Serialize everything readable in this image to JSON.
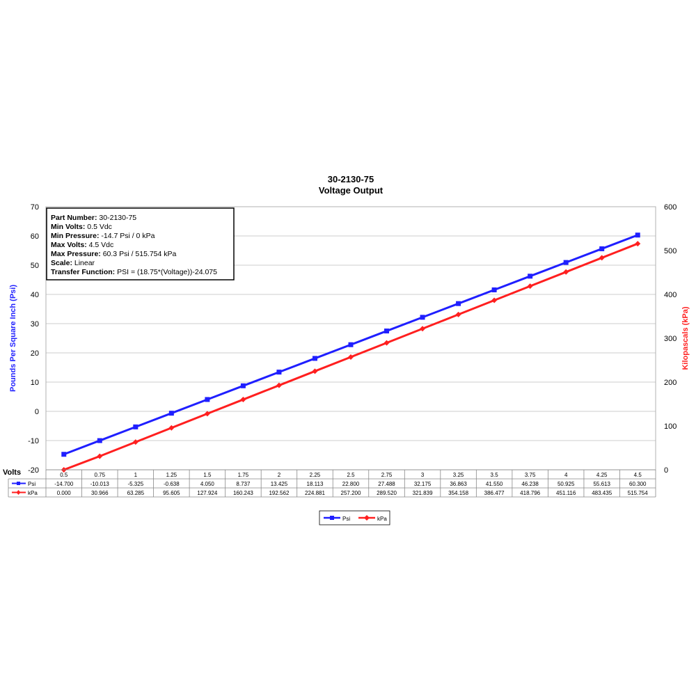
{
  "chart_data": {
    "type": "line",
    "title": "30-2130-75",
    "subtitle": "Voltage Output",
    "xlabel": "Volts",
    "ylabel_left": "Pounds Per Square Inch (Psi)",
    "ylabel_right": "Kilopascals (kPa)",
    "ylim_left": [
      -20,
      70
    ],
    "ylim_right": [
      0,
      600
    ],
    "yticks_left": [
      "70",
      "60",
      "50",
      "40",
      "30",
      "20",
      "10",
      "0",
      "-10",
      "-20"
    ],
    "yticks_right": [
      "600",
      "500",
      "400",
      "300",
      "200",
      "100",
      "0"
    ],
    "grid": true,
    "legend_position": "bottom",
    "categories": [
      "0.5",
      "0.75",
      "1",
      "1.25",
      "1.5",
      "1.75",
      "2",
      "2.25",
      "2.5",
      "2.75",
      "3",
      "3.25",
      "3.5",
      "3.75",
      "4",
      "4.25",
      "4.5"
    ],
    "series": [
      {
        "name": "Psi",
        "axis": "left",
        "color": "#1f1fff",
        "marker": "square",
        "values": [
          -14.7,
          -10.013,
          -5.325,
          -0.638,
          4.05,
          8.737,
          13.425,
          18.113,
          22.8,
          27.488,
          32.175,
          36.863,
          41.55,
          46.238,
          50.925,
          55.613,
          60.3
        ],
        "labels": [
          "-14.700",
          "-10.013",
          "-5.325",
          "-0.638",
          "4.050",
          "8.737",
          "13.425",
          "18.113",
          "22.800",
          "27.488",
          "32.175",
          "36.863",
          "41.550",
          "46.238",
          "50.925",
          "55.613",
          "60.300"
        ]
      },
      {
        "name": "kPa",
        "axis": "right",
        "color": "#ff1f1f",
        "marker": "diamond",
        "values": [
          0,
          30.966,
          63.285,
          95.605,
          127.924,
          160.243,
          192.562,
          224.881,
          257.2,
          289.52,
          321.839,
          354.158,
          386.477,
          418.796,
          451.116,
          483.435,
          515.754
        ],
        "labels": [
          "0.000",
          "30.966",
          "63.285",
          "95.605",
          "127.924",
          "160.243",
          "192.562",
          "224.881",
          "257.200",
          "289.520",
          "321.839",
          "354.158",
          "386.477",
          "418.796",
          "451.116",
          "483.435",
          "515.754"
        ]
      }
    ],
    "info_box": [
      {
        "key": "Part Number:",
        "value": "30-2130-75"
      },
      {
        "key": "Min Volts:",
        "value": "0.5 Vdc"
      },
      {
        "key": "Min Pressure:",
        "value": "-14.7 Psi / 0 kPa"
      },
      {
        "key": "Max Volts:",
        "value": "4.5 Vdc"
      },
      {
        "key": "Max Pressure:",
        "value": "60.3 Psi / 515.754 kPa"
      },
      {
        "key": "Scale:",
        "value": "Linear"
      },
      {
        "key": "Transfer Function:",
        "value": "PSI = (18.75*(Voltage))-24.075"
      }
    ]
  }
}
